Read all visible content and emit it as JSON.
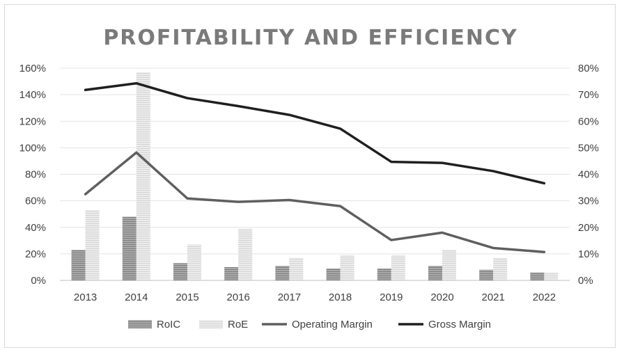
{
  "chart_data": {
    "type": "bar",
    "title": "PROFITABILITY AND EFFICIENCY",
    "categories": [
      "2013",
      "2014",
      "2015",
      "2016",
      "2017",
      "2018",
      "2019",
      "2020",
      "2021",
      "2022"
    ],
    "y_left": {
      "ticks": [
        "0%",
        "20%",
        "40%",
        "60%",
        "80%",
        "100%",
        "120%",
        "140%",
        "160%"
      ],
      "range": [
        0,
        160
      ]
    },
    "y_right": {
      "ticks": [
        "0%",
        "10%",
        "20%",
        "30%",
        "40%",
        "50%",
        "60%",
        "70%",
        "80%"
      ],
      "range": [
        0,
        80
      ]
    },
    "series": [
      {
        "name": "RoIC",
        "kind": "bar",
        "axis": "left",
        "color": "#9e9e9e",
        "values": [
          23,
          48,
          13,
          10,
          11,
          9,
          9,
          11,
          8,
          6
        ]
      },
      {
        "name": "RoE",
        "kind": "bar",
        "axis": "left",
        "color": "#e6e6e6",
        "values": [
          53,
          157,
          27,
          39,
          17,
          19,
          19,
          23,
          17,
          6
        ]
      },
      {
        "name": "Operating Margin",
        "kind": "line",
        "axis": "right",
        "color": "#5f5f5f",
        "values": [
          32.5,
          48.2,
          30.9,
          29.6,
          30.3,
          28.0,
          15.2,
          18.0,
          12.2,
          10.7
        ]
      },
      {
        "name": "Gross Margin",
        "kind": "line",
        "axis": "right",
        "color": "#1f1f1f",
        "values": [
          71.8,
          74.3,
          68.7,
          65.7,
          62.4,
          57.2,
          44.7,
          44.3,
          41.2,
          36.6
        ]
      }
    ],
    "grid": true,
    "legend_position": "bottom"
  }
}
